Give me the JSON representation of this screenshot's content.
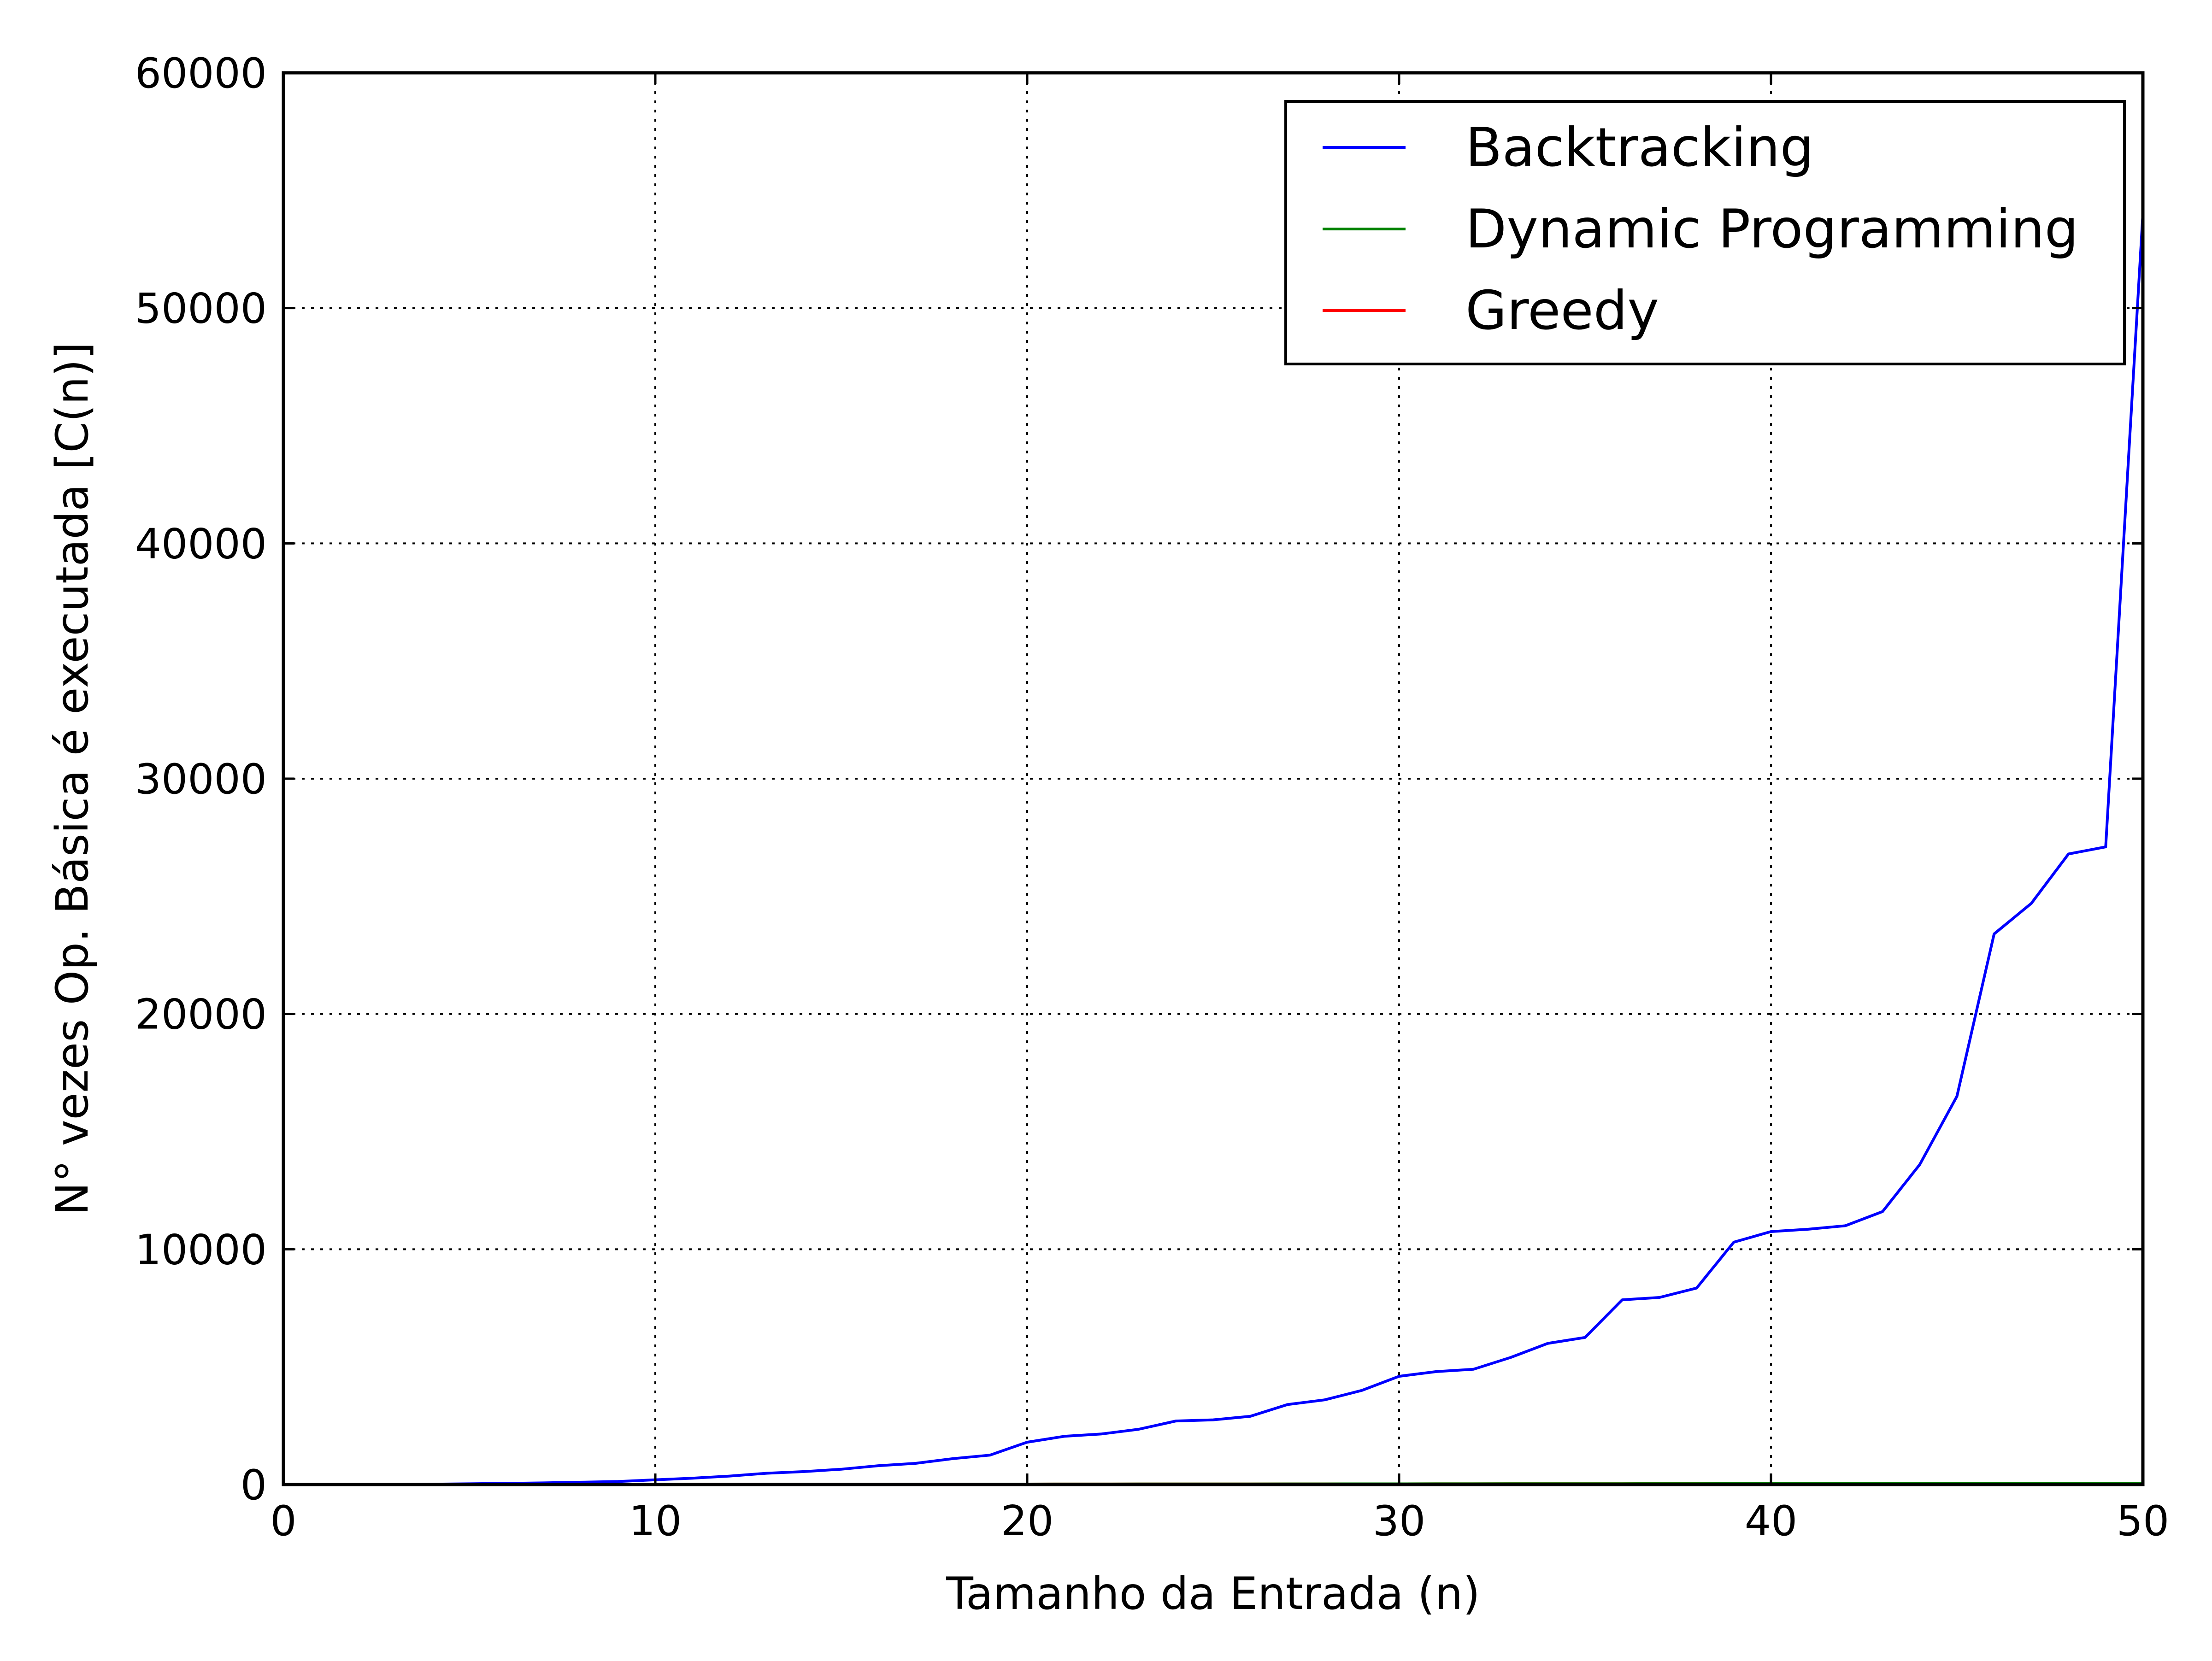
{
  "chart_data": {
    "type": "line",
    "title": "",
    "xlabel": "Tamanho da Entrada (n)",
    "ylabel": "N° vezes Op. Básica é executada [C(n)]",
    "xlim": [
      0,
      50
    ],
    "ylim": [
      0,
      60000
    ],
    "xticks": [
      0,
      10,
      20,
      30,
      40,
      50
    ],
    "yticks": [
      0,
      10000,
      20000,
      30000,
      40000,
      50000,
      60000
    ],
    "x_tick_labels": [
      "0",
      "10",
      "20",
      "30",
      "40",
      "50"
    ],
    "y_tick_labels": [
      "0",
      "10000",
      "20000",
      "30000",
      "40000",
      "50000",
      "60000"
    ],
    "grid": true,
    "legend_position": "top-right",
    "x": [
      1,
      2,
      3,
      4,
      5,
      6,
      7,
      8,
      9,
      10,
      11,
      12,
      13,
      14,
      15,
      16,
      17,
      18,
      19,
      20,
      21,
      22,
      23,
      24,
      25,
      26,
      27,
      28,
      29,
      30,
      31,
      32,
      33,
      34,
      35,
      36,
      37,
      38,
      39,
      40,
      41,
      42,
      43,
      44,
      45,
      46,
      47,
      48,
      49,
      50
    ],
    "series": [
      {
        "name": "Backtracking",
        "color": "#0000ff",
        "values": [
          1,
          3,
          7,
          15,
          31,
          50,
          70,
          100,
          130,
          200,
          270,
          360,
          480,
          550,
          650,
          800,
          900,
          1100,
          1250,
          1800,
          2050,
          2150,
          2350,
          2700,
          2750,
          2900,
          3400,
          3600,
          4000,
          4600,
          4800,
          4900,
          5400,
          6000,
          6250,
          7850,
          7950,
          8350,
          10300,
          10750,
          10850,
          11000,
          11600,
          13600,
          16500,
          23400,
          24700,
          26800,
          27100,
          54000
        ]
      },
      {
        "name": "Dynamic Programming",
        "color": "#008000",
        "values": [
          1,
          2,
          3,
          4,
          5,
          6,
          7,
          8,
          9,
          10,
          11,
          12,
          13,
          14,
          15,
          16,
          17,
          18,
          19,
          20,
          21,
          22,
          23,
          24,
          25,
          26,
          27,
          28,
          29,
          30,
          31,
          32,
          33,
          34,
          35,
          36,
          37,
          38,
          39,
          40,
          41,
          42,
          43,
          44,
          45,
          46,
          47,
          48,
          49,
          50
        ]
      },
      {
        "name": "Greedy",
        "color": "#ff0000",
        "values": [
          1,
          2,
          3,
          4,
          5,
          6,
          7,
          8,
          9,
          10,
          11,
          12,
          13,
          14,
          15,
          16,
          17,
          18,
          19,
          20,
          21,
          22,
          23,
          24,
          25,
          26,
          27,
          28,
          29,
          30,
          31,
          32,
          33,
          34,
          35,
          36,
          37,
          38,
          39,
          40,
          41,
          42,
          43,
          44,
          45,
          46,
          47,
          48,
          49,
          50
        ]
      }
    ]
  }
}
